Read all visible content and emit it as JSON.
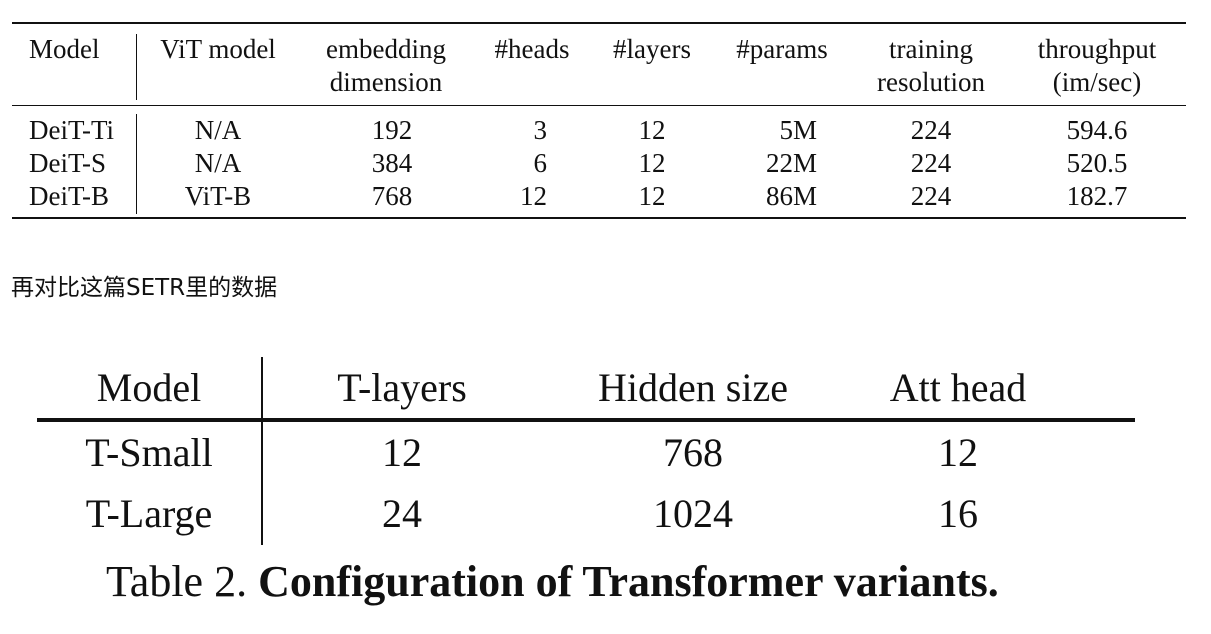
{
  "deit_table": {
    "headers": [
      [
        "Model"
      ],
      [
        "ViT model"
      ],
      [
        "embedding",
        "dimension"
      ],
      [
        "#heads"
      ],
      [
        "#layers"
      ],
      [
        "#params"
      ],
      [
        "training",
        "resolution"
      ],
      [
        "throughput",
        "(im/sec)"
      ]
    ],
    "rows": [
      [
        "DeiT-Ti",
        "N/A",
        "192",
        "3",
        "12",
        "5M",
        "224",
        "594.6"
      ],
      [
        "DeiT-S",
        "N/A",
        "384",
        "6",
        "12",
        "22M",
        "224",
        "520.5"
      ],
      [
        "DeiT-B",
        "ViT-B",
        "768",
        "12",
        "12",
        "86M",
        "224",
        "182.7"
      ]
    ]
  },
  "between_text": "再对比这篇SETR里的数据",
  "setr_table": {
    "headers": [
      "Model",
      "T-layers",
      "Hidden size",
      "Att head"
    ],
    "rows": [
      [
        "T-Small",
        "12",
        "768",
        "12"
      ],
      [
        "T-Large",
        "24",
        "1024",
        "16"
      ]
    ],
    "caption_prefix": "Table 2.",
    "caption_bold": "Configuration of Transformer variants."
  }
}
